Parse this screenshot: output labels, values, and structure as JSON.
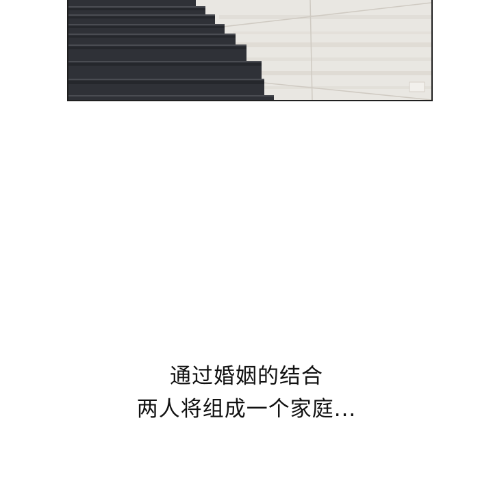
{
  "panel": {
    "scene": "staircase",
    "colors": {
      "wall": "#e9e7e2",
      "wall_stripe": "#dcd8d0",
      "tile_line": "#cfcac2",
      "stair_dark": "#2f3137",
      "stair_edge": "#4a4c52",
      "stair_shadow": "#202226",
      "border": "#1f1f1f"
    }
  },
  "caption": {
    "line1": "通过婚姻的结合",
    "line2": "两人将组成一个家庭..."
  }
}
